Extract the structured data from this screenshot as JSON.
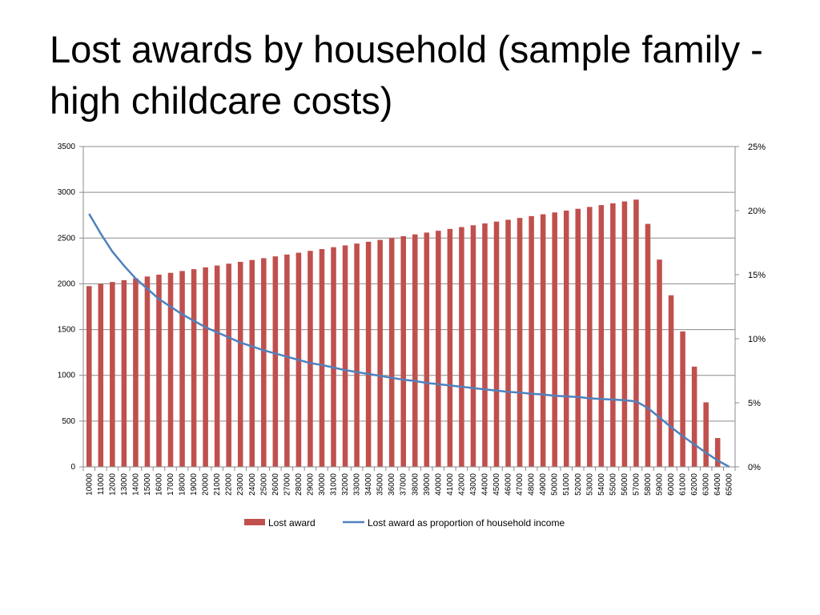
{
  "slide": {
    "title": "Lost awards by household (sample family - high childcare costs)"
  },
  "colors": {
    "bar": "#C0504D",
    "line": "#4F81BD",
    "grid": "#8C8C8C",
    "axis": "#8C8C8C"
  },
  "chart_data": {
    "type": "bar",
    "title": "",
    "xlabel": "",
    "ylabel": "",
    "ylabel_right": "",
    "ylim": [
      0,
      3500
    ],
    "yticks": [
      0,
      500,
      1000,
      1500,
      2000,
      2500,
      3000,
      3500
    ],
    "ylim_right": [
      0,
      25
    ],
    "yticks_right": [
      "0%",
      "5%",
      "10%",
      "15%",
      "20%",
      "25%"
    ],
    "grid": true,
    "legend_position": "bottom",
    "categories": [
      "10000",
      "11000",
      "12000",
      "13000",
      "14000",
      "15000",
      "16000",
      "17000",
      "18000",
      "19000",
      "20000",
      "21000",
      "22000",
      "23000",
      "24000",
      "25000",
      "26000",
      "27000",
      "28000",
      "29000",
      "30000",
      "31000",
      "32000",
      "33000",
      "34000",
      "35000",
      "36000",
      "37000",
      "38000",
      "39000",
      "40000",
      "41000",
      "42000",
      "43000",
      "44000",
      "45000",
      "46000",
      "47000",
      "48000",
      "49000",
      "50000",
      "51000",
      "52000",
      "53000",
      "54000",
      "55000",
      "56000",
      "57000",
      "58000",
      "59000",
      "60000",
      "61000",
      "62000",
      "63000",
      "64000",
      "65000"
    ],
    "series": [
      {
        "name": "Lost award",
        "type": "bar",
        "axis": "left",
        "values": [
          1975,
          2000,
          2020,
          2040,
          2060,
          2080,
          2100,
          2120,
          2140,
          2160,
          2180,
          2200,
          2220,
          2240,
          2260,
          2280,
          2300,
          2320,
          2340,
          2360,
          2380,
          2400,
          2420,
          2440,
          2460,
          2480,
          2500,
          2520,
          2540,
          2560,
          2580,
          2600,
          2620,
          2640,
          2660,
          2680,
          2700,
          2720,
          2740,
          2760,
          2780,
          2800,
          2820,
          2840,
          2860,
          2880,
          2900,
          2920,
          2655,
          2265,
          1875,
          1480,
          1095,
          705,
          315,
          0
        ]
      },
      {
        "name": "Lost award as proportion of household income",
        "type": "line",
        "axis": "right",
        "unit": "%",
        "values": [
          19.75,
          18.2,
          16.8,
          15.7,
          14.7,
          13.9,
          13.1,
          12.5,
          11.9,
          11.4,
          10.9,
          10.5,
          10.1,
          9.7,
          9.4,
          9.1,
          8.85,
          8.6,
          8.35,
          8.1,
          7.95,
          7.75,
          7.55,
          7.4,
          7.25,
          7.1,
          6.95,
          6.8,
          6.7,
          6.55,
          6.45,
          6.35,
          6.25,
          6.15,
          6.05,
          5.95,
          5.85,
          5.8,
          5.7,
          5.65,
          5.55,
          5.5,
          5.45,
          5.35,
          5.3,
          5.25,
          5.2,
          5.1,
          4.6,
          3.85,
          3.1,
          2.4,
          1.75,
          1.1,
          0.5,
          0
        ]
      }
    ]
  }
}
